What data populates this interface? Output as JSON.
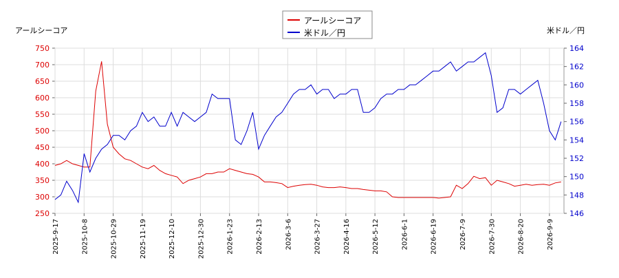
{
  "chart_data": {
    "type": "line",
    "y_label": "アールシーコア",
    "y2_label": "米ドル／円",
    "legend": "top",
    "grid": true,
    "categories": [
      "2025-9-17",
      null,
      null,
      null,
      null,
      "2025-10-8",
      null,
      null,
      null,
      null,
      "2025-10-29",
      null,
      null,
      null,
      null,
      "2025-11-19",
      null,
      null,
      null,
      null,
      "2025-12-10",
      null,
      null,
      null,
      null,
      "2025-12-30",
      null,
      null,
      null,
      null,
      "2026-1-23",
      null,
      null,
      null,
      null,
      "2026-2-13",
      null,
      null,
      null,
      null,
      "2026-3-6",
      null,
      null,
      null,
      null,
      "2026-3-27",
      null,
      null,
      null,
      null,
      "2026-4-16",
      null,
      null,
      null,
      null,
      "2026-5-12",
      null,
      null,
      null,
      null,
      "2026-6-1",
      null,
      null,
      null,
      null,
      "2026-6-19",
      null,
      null,
      null,
      null,
      "2026-7-9",
      null,
      null,
      null,
      null,
      "2026-7-30",
      null,
      null,
      null,
      null,
      "2026-8-20",
      null,
      null,
      null,
      null,
      "2026-9-9",
      null,
      null
    ],
    "ylim": [
      250,
      750
    ],
    "yticks": [
      250,
      300,
      350,
      400,
      450,
      500,
      550,
      600,
      650,
      700,
      750
    ],
    "y2lim": [
      146,
      164
    ],
    "y2ticks": [
      146,
      148,
      150,
      152,
      154,
      156,
      158,
      160,
      162,
      164
    ],
    "series": [
      {
        "name": "アールシーコア",
        "color": "#dd0000",
        "values": [
          395,
          400,
          410,
          400,
          395,
          390,
          390,
          620,
          710,
          520,
          450,
          430,
          415,
          410,
          400,
          390,
          385,
          395,
          380,
          370,
          365,
          360,
          340,
          350,
          355,
          360,
          370,
          370,
          375,
          375,
          385,
          380,
          375,
          370,
          368,
          360,
          345,
          345,
          343,
          340,
          328,
          332,
          335,
          337,
          338,
          335,
          330,
          328,
          328,
          330,
          328,
          325,
          325,
          322,
          320,
          318,
          318,
          315,
          300,
          298,
          298,
          298,
          298,
          298,
          298,
          298,
          296,
          298,
          300,
          335,
          325,
          340,
          362,
          355,
          358,
          335,
          350,
          345,
          340,
          332,
          335,
          338,
          335,
          337,
          338,
          335,
          342,
          345
        ]
      },
      {
        "name": "米ドル／円",
        "color": "#0000cc",
        "axis": "y2",
        "values": [
          147.5,
          148,
          149.5,
          148.5,
          147.2,
          152.5,
          150.5,
          152,
          153,
          153.5,
          154.5,
          154.5,
          154,
          155,
          155.5,
          157,
          156,
          156.5,
          155.5,
          155.5,
          157,
          155.5,
          157,
          156.5,
          156,
          156.5,
          157,
          159,
          158.5,
          158.5,
          158.5,
          154,
          153.5,
          155,
          157,
          153,
          154.5,
          155.5,
          156.5,
          157,
          158,
          159,
          159.5,
          159.5,
          160,
          159,
          159.5,
          159.5,
          158.5,
          159,
          159,
          159.5,
          159.5,
          157,
          157,
          157.5,
          158.5,
          159,
          159,
          159.5,
          159.5,
          160,
          160,
          160.5,
          161,
          161.5,
          161.5,
          162,
          162.5,
          161.5,
          162,
          162.5,
          162.5,
          163,
          163.5,
          161,
          157,
          157.5,
          159.5,
          159.5,
          159,
          159.5,
          160,
          160.5,
          158,
          155,
          154,
          156
        ]
      }
    ]
  }
}
